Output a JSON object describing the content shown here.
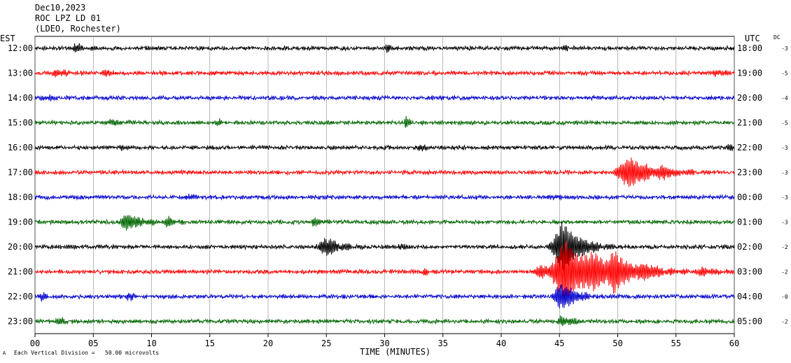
{
  "header": {
    "date": "Dec10,2023",
    "station": "ROC LPZ LD 01",
    "network": "(LDEO, Rochester)"
  },
  "left_tz": "EST",
  "right_tz": "UTC",
  "dc_label": "DC",
  "footer": {
    "xlabel": "TIME (MINUTES)",
    "scale_note": "Each Vertical Division =   50.00 microvolts",
    "corner_mark": "A"
  },
  "chart_data": {
    "type": "line",
    "title": "ROC LPZ LD 01",
    "xlabel": "TIME (MINUTES)",
    "xlim": [
      0,
      60
    ],
    "x_ticks": [
      "00",
      "05",
      "10",
      "15",
      "20",
      "25",
      "30",
      "35",
      "40",
      "45",
      "50",
      "55",
      "60"
    ],
    "grid": true,
    "trace_colors": [
      "#000000",
      "#ff0000",
      "#0000cc",
      "#006600"
    ],
    "rows": [
      {
        "est": "12:00",
        "utc": "18:00",
        "dc": "-3",
        "color": "#000000",
        "events": [
          {
            "t": 3.5,
            "amp": 6,
            "dur": 1.0
          },
          {
            "t": 30.3,
            "amp": 5,
            "dur": 0.6
          },
          {
            "t": 45.5,
            "amp": 4,
            "dur": 0.6
          }
        ]
      },
      {
        "est": "13:00",
        "utc": "19:00",
        "dc": "-5",
        "color": "#ff0000",
        "events": [
          {
            "t": 2.0,
            "amp": 6,
            "dur": 1.0
          },
          {
            "t": 6.0,
            "amp": 5,
            "dur": 0.8
          },
          {
            "t": 58.5,
            "amp": 5,
            "dur": 1.2
          }
        ]
      },
      {
        "est": "14:00",
        "utc": "20:00",
        "dc": "-4",
        "color": "#0000cc",
        "events": [
          {
            "t": 1.0,
            "amp": 5,
            "dur": 0.8
          },
          {
            "t": 47.5,
            "amp": 4,
            "dur": 0.6
          }
        ]
      },
      {
        "est": "15:00",
        "utc": "21:00",
        "dc": "-5",
        "color": "#006600",
        "events": [
          {
            "t": 6.5,
            "amp": 5,
            "dur": 1.2
          },
          {
            "t": 15.8,
            "amp": 4,
            "dur": 0.6
          },
          {
            "t": 31.8,
            "amp": 9,
            "dur": 0.4
          }
        ]
      },
      {
        "est": "16:00",
        "utc": "22:00",
        "dc": "-3",
        "color": "#000000",
        "events": [
          {
            "t": 7.5,
            "amp": 5,
            "dur": 0.6
          },
          {
            "t": 33.0,
            "amp": 5,
            "dur": 0.8
          },
          {
            "t": 59.5,
            "amp": 5,
            "dur": 0.5
          }
        ]
      },
      {
        "est": "17:00",
        "utc": "23:00",
        "dc": "-3",
        "color": "#ff0000",
        "events": [
          {
            "t": 51.0,
            "amp": 22,
            "dur": 2.2
          },
          {
            "t": 54.0,
            "amp": 5,
            "dur": 1.2
          }
        ]
      },
      {
        "est": "18:00",
        "utc": "00:00",
        "dc": "-3",
        "color": "#0000cc",
        "events": [
          {
            "t": 13.2,
            "amp": 5,
            "dur": 0.6
          },
          {
            "t": 44.5,
            "amp": 4,
            "dur": 0.6
          }
        ]
      },
      {
        "est": "19:00",
        "utc": "01:00",
        "dc": "-3",
        "color": "#006600",
        "events": [
          {
            "t": 8.0,
            "amp": 12,
            "dur": 1.5
          },
          {
            "t": 11.5,
            "amp": 6,
            "dur": 1.0
          },
          {
            "t": 24.0,
            "amp": 5,
            "dur": 1.0
          }
        ]
      },
      {
        "est": "20:00",
        "utc": "02:00",
        "dc": "-2",
        "color": "#000000",
        "events": [
          {
            "t": 25.0,
            "amp": 13,
            "dur": 1.5
          },
          {
            "t": 31.3,
            "amp": 5,
            "dur": 0.6
          },
          {
            "t": 45.3,
            "amp": 36,
            "dur": 1.8
          }
        ]
      },
      {
        "est": "21:00",
        "utc": "03:00",
        "dc": "-2",
        "color": "#ff0000",
        "events": [
          {
            "t": 33.5,
            "amp": 5,
            "dur": 0.6
          },
          {
            "t": 43.5,
            "amp": 10,
            "dur": 1.5
          },
          {
            "t": 45.5,
            "amp": 45,
            "dur": 2.0
          },
          {
            "t": 48.0,
            "amp": 18,
            "dur": 2.0
          },
          {
            "t": 49.8,
            "amp": 22,
            "dur": 1.2
          },
          {
            "t": 52.5,
            "amp": 8,
            "dur": 2.5
          },
          {
            "t": 57.5,
            "amp": 5,
            "dur": 1.5
          }
        ]
      },
      {
        "est": "22:00",
        "utc": "04:00",
        "dc": "-0",
        "color": "#0000cc",
        "events": [
          {
            "t": 0.5,
            "amp": 5,
            "dur": 0.8
          },
          {
            "t": 8.0,
            "amp": 5,
            "dur": 0.8
          },
          {
            "t": 45.2,
            "amp": 20,
            "dur": 1.5
          }
        ]
      },
      {
        "est": "23:00",
        "utc": "05:00",
        "dc": "-2",
        "color": "#006600",
        "events": [
          {
            "t": 2.0,
            "amp": 5,
            "dur": 1.2
          },
          {
            "t": 45.3,
            "amp": 8,
            "dur": 1.0
          }
        ]
      }
    ]
  }
}
